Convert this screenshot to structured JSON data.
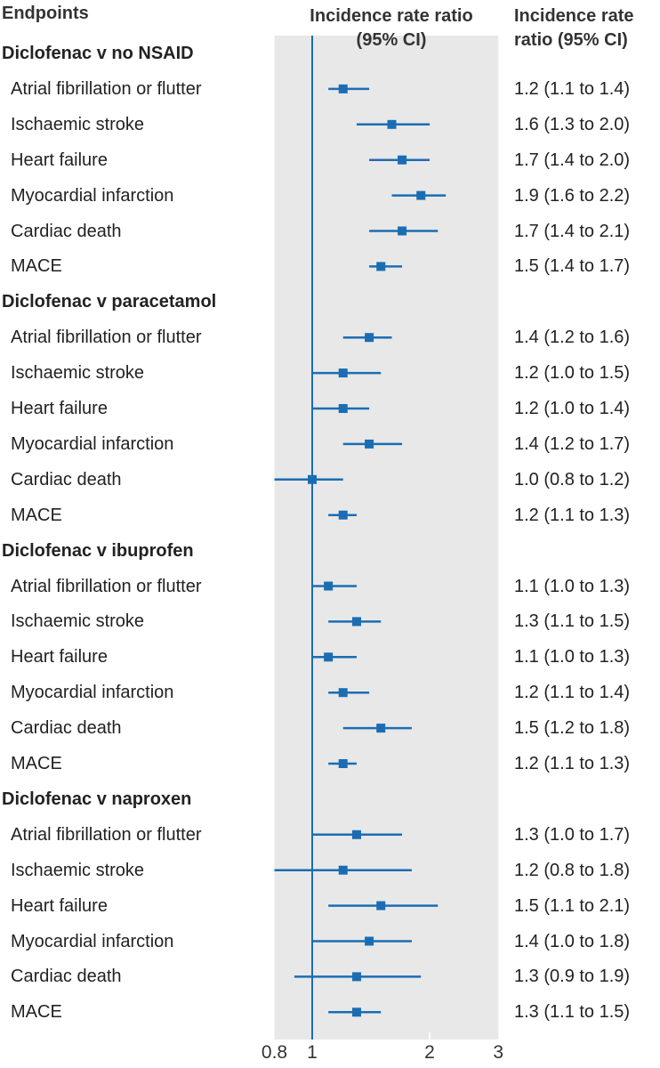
{
  "chart_data": {
    "type": "forest",
    "headers": {
      "endpoints": "Endpoints",
      "plot": "Incidence rate ratio (95% CI)",
      "values": "Incidence rate ratio (95% CI)"
    },
    "x_scale": "log",
    "xlim": [
      0.8,
      3
    ],
    "x_ticks": [
      "0.8",
      "1",
      "2",
      "3"
    ],
    "reference_line": 1,
    "colors": {
      "marker": "#1b6db3",
      "panel": "#e8e8e8"
    },
    "groups": [
      {
        "title": "Diclofenac v no NSAID",
        "rows": [
          {
            "label": "Atrial fibrillation or flutter",
            "est": 1.2,
            "lo": 1.1,
            "hi": 1.4,
            "text": "1.2 (1.1 to 1.4)"
          },
          {
            "label": "Ischaemic stroke",
            "est": 1.6,
            "lo": 1.3,
            "hi": 2.0,
            "text": "1.6 (1.3 to 2.0)"
          },
          {
            "label": "Heart failure",
            "est": 1.7,
            "lo": 1.4,
            "hi": 2.0,
            "text": "1.7 (1.4 to 2.0)"
          },
          {
            "label": "Myocardial infarction",
            "est": 1.9,
            "lo": 1.6,
            "hi": 2.2,
            "text": "1.9 (1.6 to 2.2)"
          },
          {
            "label": "Cardiac death",
            "est": 1.7,
            "lo": 1.4,
            "hi": 2.1,
            "text": "1.7 (1.4 to 2.1)"
          },
          {
            "label": "MACE",
            "est": 1.5,
            "lo": 1.4,
            "hi": 1.7,
            "text": "1.5 (1.4 to 1.7)"
          }
        ]
      },
      {
        "title": "Diclofenac v paracetamol",
        "rows": [
          {
            "label": "Atrial fibrillation or flutter",
            "est": 1.4,
            "lo": 1.2,
            "hi": 1.6,
            "text": "1.4 (1.2 to 1.6)"
          },
          {
            "label": "Ischaemic stroke",
            "est": 1.2,
            "lo": 1.0,
            "hi": 1.5,
            "text": "1.2 (1.0 to 1.5)"
          },
          {
            "label": "Heart failure",
            "est": 1.2,
            "lo": 1.0,
            "hi": 1.4,
            "text": "1.2 (1.0 to 1.4)"
          },
          {
            "label": "Myocardial infarction",
            "est": 1.4,
            "lo": 1.2,
            "hi": 1.7,
            "text": "1.4 (1.2 to 1.7)"
          },
          {
            "label": "Cardiac death",
            "est": 1.0,
            "lo": 0.8,
            "hi": 1.2,
            "text": "1.0 (0.8 to 1.2)"
          },
          {
            "label": "MACE",
            "est": 1.2,
            "lo": 1.1,
            "hi": 1.3,
            "text": "1.2 (1.1 to 1.3)"
          }
        ]
      },
      {
        "title": "Diclofenac v ibuprofen",
        "rows": [
          {
            "label": "Atrial fibrillation or flutter",
            "est": 1.1,
            "lo": 1.0,
            "hi": 1.3,
            "text": "1.1 (1.0 to 1.3)"
          },
          {
            "label": "Ischaemic stroke",
            "est": 1.3,
            "lo": 1.1,
            "hi": 1.5,
            "text": "1.3 (1.1 to 1.5)"
          },
          {
            "label": "Heart failure",
            "est": 1.1,
            "lo": 1.0,
            "hi": 1.3,
            "text": "1.1 (1.0 to 1.3)"
          },
          {
            "label": "Myocardial infarction",
            "est": 1.2,
            "lo": 1.1,
            "hi": 1.4,
            "text": "1.2 (1.1 to 1.4)"
          },
          {
            "label": "Cardiac death",
            "est": 1.5,
            "lo": 1.2,
            "hi": 1.8,
            "text": "1.5 (1.2 to 1.8)"
          },
          {
            "label": "MACE",
            "est": 1.2,
            "lo": 1.1,
            "hi": 1.3,
            "text": "1.2 (1.1 to 1.3)"
          }
        ]
      },
      {
        "title": "Diclofenac v naproxen",
        "rows": [
          {
            "label": "Atrial fibrillation or flutter",
            "est": 1.3,
            "lo": 1.0,
            "hi": 1.7,
            "text": "1.3 (1.0 to 1.7)"
          },
          {
            "label": "Ischaemic stroke",
            "est": 1.2,
            "lo": 0.8,
            "hi": 1.8,
            "text": "1.2 (0.8 to 1.8)"
          },
          {
            "label": "Heart failure",
            "est": 1.5,
            "lo": 1.1,
            "hi": 2.1,
            "text": "1.5 (1.1 to 2.1)"
          },
          {
            "label": "Myocardial infarction",
            "est": 1.4,
            "lo": 1.0,
            "hi": 1.8,
            "text": "1.4 (1.0 to 1.8)"
          },
          {
            "label": "Cardiac death",
            "est": 1.3,
            "lo": 0.9,
            "hi": 1.9,
            "text": "1.3 (0.9 to 1.9)"
          },
          {
            "label": "MACE",
            "est": 1.3,
            "lo": 1.1,
            "hi": 1.5,
            "text": "1.3 (1.1 to 1.5)"
          }
        ]
      }
    ]
  }
}
